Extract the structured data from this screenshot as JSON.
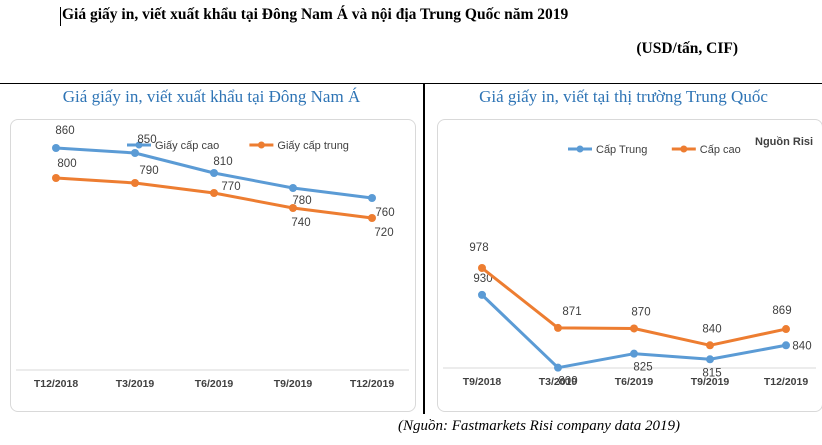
{
  "header": {
    "title": "Giá giấy in, viết xuất khẩu tại Đông Nam Á và nội địa Trung Quốc năm 2019",
    "unit": "(USD/tấn, CIF)"
  },
  "footer": {
    "source": "(Nguồn: Fastmarkets Risi company data 2019)"
  },
  "colors": {
    "blue": "#5b9bd5",
    "orange": "#ed7d31",
    "title_blue": "#2e74b5"
  },
  "chart_data": [
    {
      "type": "line",
      "title": "Giá giấy in, viết xuất khẩu tại Đông Nam Á",
      "categories": [
        "T12/2018",
        "T3/2019",
        "T6/2019",
        "T9/2019",
        "T12/2019"
      ],
      "series": [
        {
          "name": "Giấy cấp cao",
          "color": "#5b9bd5",
          "values": [
            860,
            850,
            810,
            780,
            760
          ]
        },
        {
          "name": "Giấy cấp trung",
          "color": "#ed7d31",
          "values": [
            800,
            790,
            770,
            740,
            720
          ]
        }
      ],
      "legend": "top",
      "grid": false
    },
    {
      "type": "line",
      "title": "Giá giấy in, viết tại thị trường Trung Quốc",
      "categories": [
        "T9/2018",
        "T3/2019",
        "T6/2019",
        "T9/2019",
        "T12/2019"
      ],
      "series": [
        {
          "name": "Cấp Trung",
          "color": "#5b9bd5",
          "values": [
            930,
            800,
            825,
            815,
            840
          ]
        },
        {
          "name": "Cấp cao",
          "color": "#ed7d31",
          "values": [
            978,
            871,
            870,
            840,
            869
          ]
        }
      ],
      "annotation": "Nguồn Risi",
      "legend": "top",
      "grid": false
    }
  ]
}
